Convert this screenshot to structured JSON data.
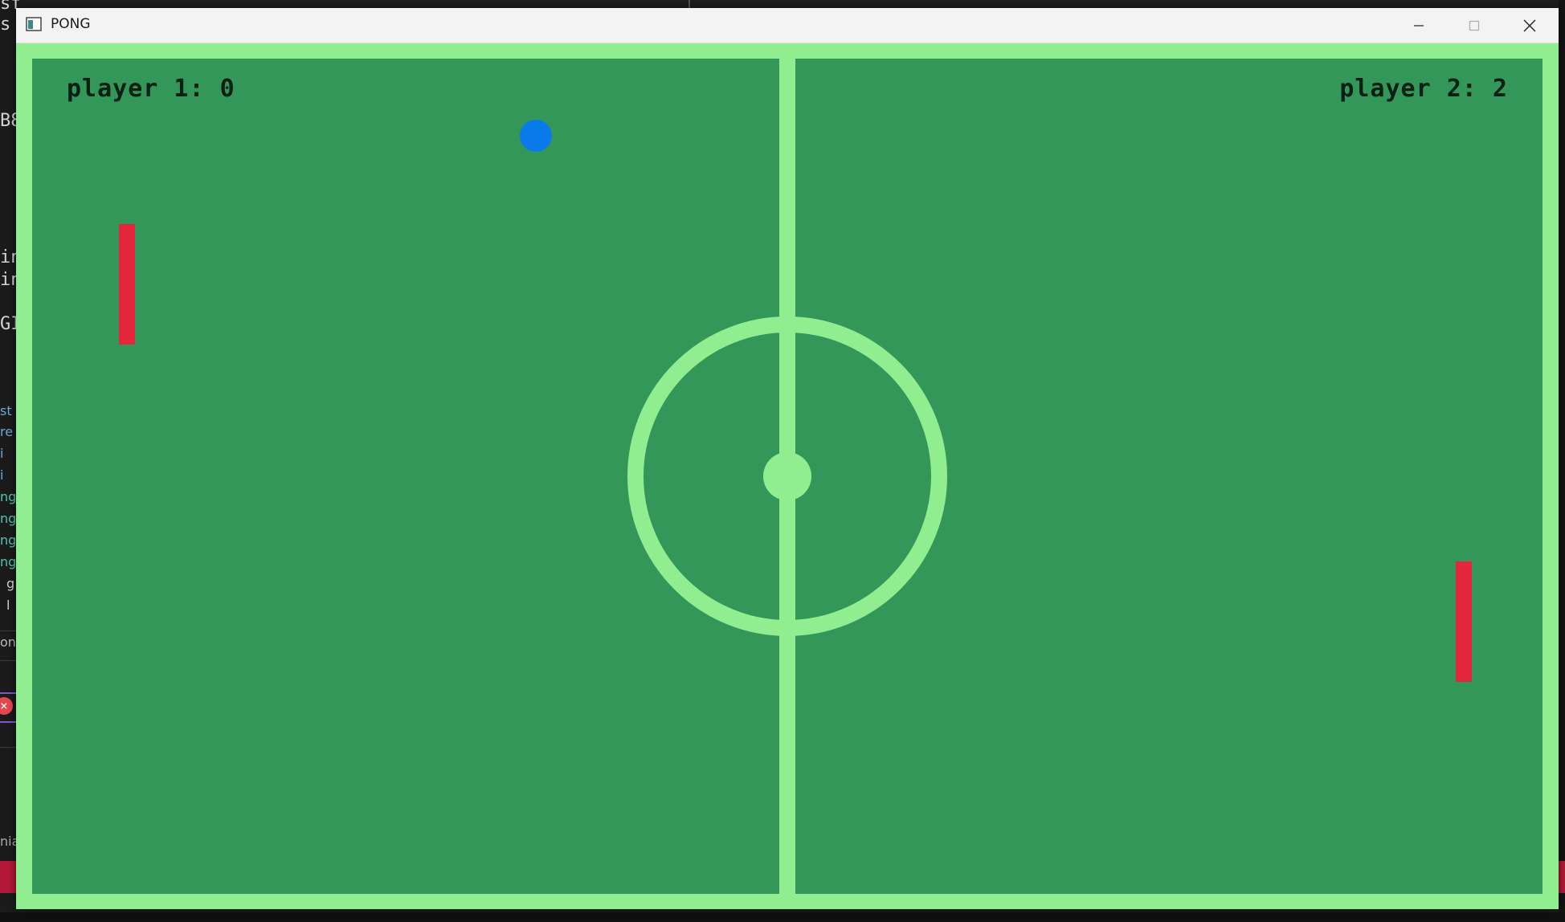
{
  "window": {
    "title": "PONG",
    "icon": "app-window-icon",
    "controls": {
      "minimize": "minimize-icon",
      "maximize": "maximize-icon",
      "close": "close-icon"
    }
  },
  "game": {
    "player1_score_label": "player 1: 0",
    "player2_score_label": "player 2: 2",
    "colors": {
      "field": "#339759",
      "lines": "#90ee90",
      "paddles": "#e3263a",
      "ball": "#0a7aea",
      "score_text": "#0b1f12"
    }
  },
  "background": {
    "fragments": [
      "sfully",
      "s",
      "B8",
      "in",
      "in",
      "GI",
      "st",
      "re",
      "i",
      "i",
      "ng",
      "ng",
      "ng",
      "ng",
      "g",
      "l",
      "on",
      "nia"
    ]
  }
}
